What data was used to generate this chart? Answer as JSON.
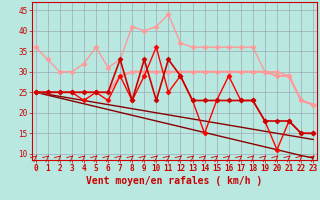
{
  "bg_color": "#b8e8e0",
  "grid_color": "#9999aa",
  "xlabel": "Vent moyen/en rafales ( km/h )",
  "xlabel_color": "#cc0000",
  "ylabel_ticks": [
    10,
    15,
    20,
    25,
    30,
    35,
    40,
    45
  ],
  "xlim": [
    -0.3,
    23.3
  ],
  "ylim": [
    8.5,
    47
  ],
  "x": [
    0,
    1,
    2,
    3,
    4,
    5,
    6,
    7,
    8,
    9,
    10,
    11,
    12,
    13,
    14,
    15,
    16,
    17,
    18,
    19,
    20,
    21,
    22,
    23
  ],
  "series": [
    {
      "y": [
        36,
        33,
        30,
        30,
        32,
        36,
        31,
        33,
        41,
        40,
        41,
        44,
        37,
        36,
        36,
        36,
        36,
        36,
        36,
        30,
        30,
        29,
        23,
        22
      ],
      "color": "#ff9999",
      "lw": 1.0,
      "marker": "D",
      "ms": 2.5,
      "zorder": 3
    },
    {
      "y": [
        25,
        25,
        25,
        25,
        25,
        25,
        25,
        29,
        30,
        30,
        30,
        30,
        30,
        30,
        30,
        30,
        30,
        30,
        30,
        30,
        29,
        29,
        23,
        22
      ],
      "color": "#ff9999",
      "lw": 1.5,
      "marker": "D",
      "ms": 2.5,
      "zorder": 3
    },
    {
      "y": [
        25,
        25,
        25,
        25,
        23,
        25,
        23,
        29,
        23,
        29,
        36,
        25,
        29,
        23,
        15,
        23,
        29,
        23,
        23,
        18,
        11,
        18,
        15,
        15
      ],
      "color": "#ff0000",
      "lw": 1.0,
      "marker": "D",
      "ms": 2.5,
      "zorder": 4
    },
    {
      "y": [
        25,
        25,
        25,
        25,
        25,
        25,
        25,
        33,
        23,
        33,
        23,
        33,
        29,
        23,
        23,
        23,
        23,
        23,
        23,
        18,
        18,
        18,
        15,
        15
      ],
      "color": "#cc0000",
      "lw": 1.2,
      "marker": "D",
      "ms": 2.5,
      "zorder": 4
    },
    {
      "y": [
        25,
        24.5,
        24.0,
        23.5,
        23.0,
        22.5,
        22.0,
        21.5,
        21.0,
        20.5,
        20.0,
        19.5,
        19.0,
        18.5,
        18.0,
        17.5,
        17.0,
        16.5,
        16.0,
        15.5,
        15.0,
        14.5,
        14.0,
        13.5
      ],
      "color": "#880000",
      "lw": 1.0,
      "marker": null,
      "ms": 0,
      "zorder": 2
    },
    {
      "y": [
        25,
        24.3,
        23.6,
        22.9,
        22.2,
        21.5,
        20.8,
        20.1,
        19.4,
        18.7,
        18.0,
        17.3,
        16.6,
        15.9,
        15.2,
        14.5,
        13.8,
        13.1,
        12.4,
        11.7,
        11.0,
        10.3,
        9.6,
        9.0
      ],
      "color": "#880000",
      "lw": 1.0,
      "marker": null,
      "ms": 0,
      "zorder": 2
    }
  ],
  "tick_fontsize": 5.5,
  "label_fontsize": 7.0
}
